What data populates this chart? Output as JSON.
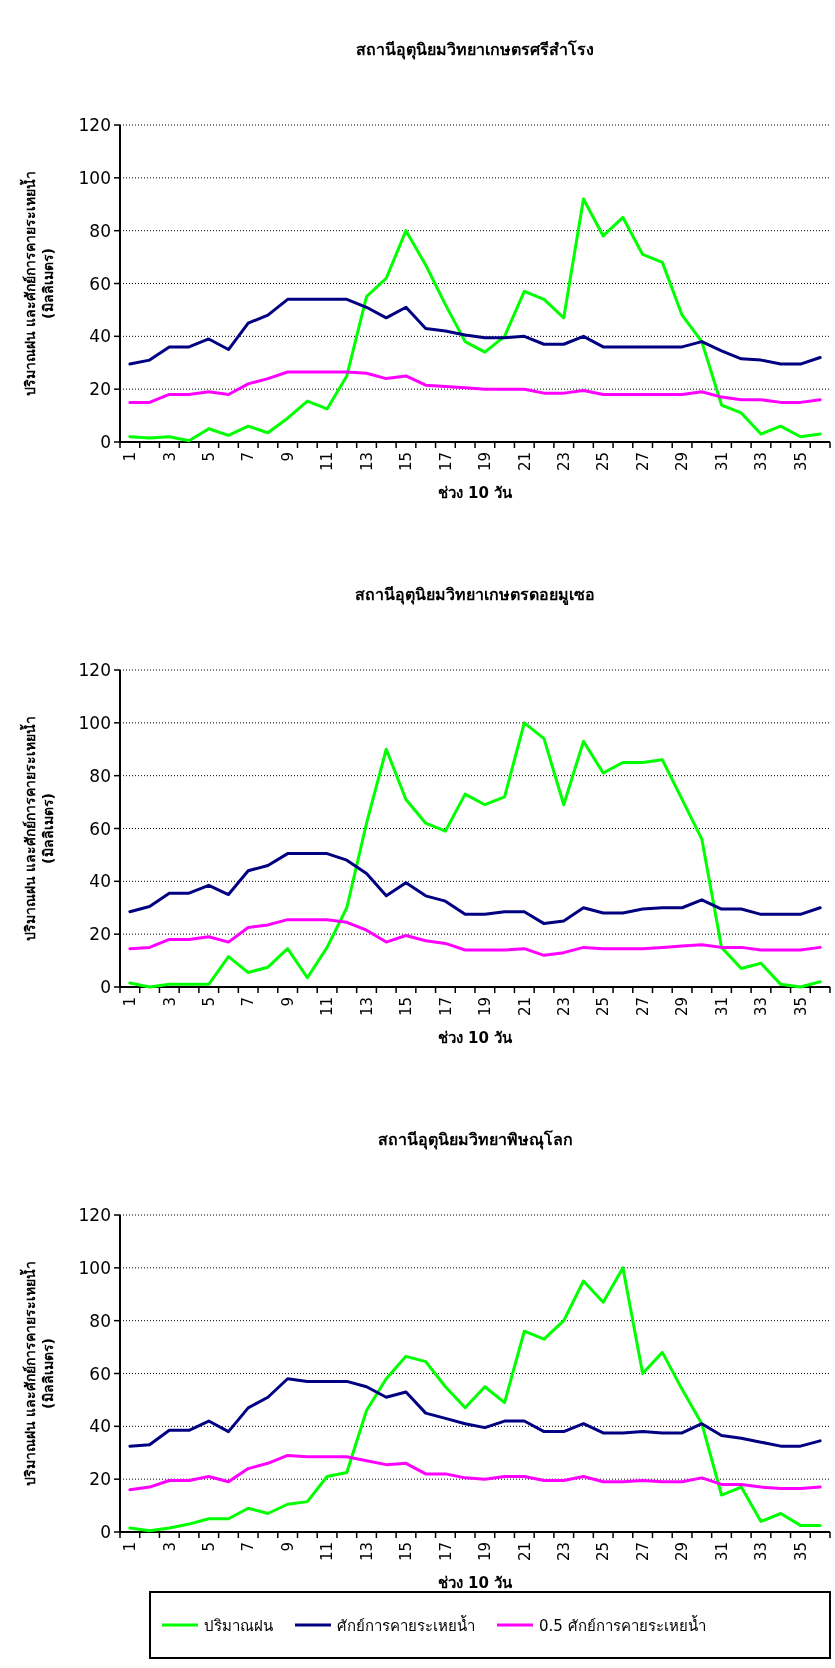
{
  "chart_data": [
    {
      "type": "line",
      "title": "สถานีอุตุนิยมวิทยาเกษตรศรีสำโรง",
      "xlabel": "ช่วง 10 วัน",
      "ylabel": "ปริมาณฝน และศักย์การคายระเหยน้ำ\n(มิลลิเมตร)",
      "categories": [
        "1",
        null,
        "3",
        null,
        "5",
        null,
        "7",
        null,
        "9",
        null,
        "11",
        null,
        "13",
        null,
        "15",
        null,
        "17",
        null,
        "19",
        null,
        "21",
        null,
        "23",
        null,
        "25",
        null,
        "27",
        null,
        "29",
        null,
        "31",
        null,
        "33",
        null,
        "35",
        null
      ],
      "ylim": [
        0,
        120
      ],
      "yticks": [
        0,
        20,
        40,
        60,
        80,
        100,
        120
      ],
      "grid": "y",
      "legend": false,
      "marker": "none",
      "line_style": "solid",
      "series": [
        {
          "color": "#00ff00",
          "values": [
            2,
            1.5,
            2,
            0.5,
            5,
            2.5,
            6,
            3.5,
            9,
            15.5,
            12.5,
            25,
            55,
            62,
            80,
            67,
            52,
            38,
            34,
            40,
            57,
            54,
            47,
            92,
            78,
            85,
            71,
            68,
            48,
            38,
            14,
            11,
            3,
            6,
            2,
            3
          ]
        },
        {
          "color": "#000080",
          "values": [
            29.5,
            31,
            36,
            36,
            39,
            35,
            45,
            48,
            54,
            54,
            54,
            54,
            51,
            47,
            51,
            43,
            42,
            40.5,
            39.5,
            39.5,
            40,
            37,
            37,
            40,
            36,
            36,
            36,
            36,
            36,
            38,
            34.5,
            31.5,
            31,
            29.5,
            29.5,
            32
          ]
        },
        {
          "color": "#ff00ff",
          "values": [
            15,
            15,
            18,
            18,
            19,
            18,
            22,
            24,
            26.5,
            26.5,
            26.5,
            26.5,
            26,
            24,
            25,
            21.5,
            21,
            20.5,
            20,
            20,
            20,
            18.5,
            18.5,
            19.5,
            18,
            18,
            18,
            18,
            18,
            19,
            17,
            16,
            16,
            15,
            15,
            16
          ]
        }
      ]
    },
    {
      "type": "line",
      "title": "สถานีอุตุนิยมวิทยาเกษตรดอยมูเซอ",
      "xlabel": "ช่วง 10 วัน",
      "ylabel": "ปริมาณฝน และศักย์การคายระเหยน้ำ\n(มิลลิเมตร)",
      "categories": [
        "1",
        null,
        "3",
        null,
        "5",
        null,
        "7",
        null,
        "9",
        null,
        "11",
        null,
        "13",
        null,
        "15",
        null,
        "17",
        null,
        "19",
        null,
        "21",
        null,
        "23",
        null,
        "25",
        null,
        "27",
        null,
        "29",
        null,
        "31",
        null,
        "33",
        null,
        "35",
        null
      ],
      "ylim": [
        0,
        120
      ],
      "yticks": [
        0,
        20,
        40,
        60,
        80,
        100,
        120
      ],
      "grid": "y",
      "legend": false,
      "marker": "none",
      "line_style": "solid",
      "series": [
        {
          "color": "#00ff00",
          "values": [
            1.5,
            0,
            1,
            1,
            1,
            11.5,
            5.5,
            7.5,
            14.5,
            3.5,
            15,
            30,
            62,
            90,
            71,
            62,
            59,
            73,
            69,
            72,
            100,
            94,
            69,
            93,
            81,
            85,
            85,
            86,
            71,
            56,
            15,
            7,
            9,
            1,
            0,
            2
          ]
        },
        {
          "color": "#000080",
          "values": [
            28.5,
            30.5,
            35.5,
            35.5,
            38.5,
            35,
            44,
            46,
            50.5,
            50.5,
            50.5,
            48,
            43,
            34.5,
            39.5,
            34.5,
            32.5,
            27.5,
            27.5,
            28.5,
            28.5,
            24,
            25,
            30,
            28,
            28,
            29.5,
            30,
            30,
            33,
            29.5,
            29.5,
            27.5,
            27.5,
            27.5,
            30
          ]
        },
        {
          "color": "#ff00ff",
          "values": [
            14.5,
            15,
            18,
            18,
            19,
            17,
            22.5,
            23.5,
            25.5,
            25.5,
            25.5,
            24.5,
            21.5,
            17,
            19.5,
            17.5,
            16.5,
            14,
            14,
            14,
            14.5,
            12,
            13,
            15,
            14.5,
            14.5,
            14.5,
            15,
            15.5,
            16,
            15,
            15,
            14,
            14,
            14,
            15
          ]
        }
      ]
    },
    {
      "type": "line",
      "title": "สถานีอุตุนิยมวิทยาพิษณุโลก",
      "xlabel": "ช่วง 10 วัน",
      "ylabel": "ปริมาณฝน และศักย์การคายระเหยน้ำ\n(มิลลิเมตร)",
      "categories": [
        "1",
        null,
        "3",
        null,
        "5",
        null,
        "7",
        null,
        "9",
        null,
        "11",
        null,
        "13",
        null,
        "15",
        null,
        "17",
        null,
        "19",
        null,
        "21",
        null,
        "23",
        null,
        "25",
        null,
        "27",
        null,
        "29",
        null,
        "31",
        null,
        "33",
        null,
        "35",
        null
      ],
      "ylim": [
        0,
        120
      ],
      "yticks": [
        0,
        20,
        40,
        60,
        80,
        100,
        120
      ],
      "grid": "y",
      "legend": "bottom",
      "marker": "none",
      "line_style": "solid",
      "series": [
        {
          "name": "ปริมาณฝน",
          "color": "#00ff00",
          "values": [
            1.5,
            0.5,
            1.5,
            3,
            5,
            5,
            9,
            7,
            10.5,
            11.5,
            21,
            22.5,
            46,
            58,
            66.5,
            64.5,
            55,
            47,
            55,
            49,
            76,
            73,
            80,
            95,
            87,
            100,
            60,
            68,
            54,
            41,
            14,
            17,
            4,
            7,
            2.5,
            2.5
          ]
        },
        {
          "name": "ศักย์การคายระเหยน้ำ",
          "color": "#000080",
          "values": [
            32.5,
            33,
            38.5,
            38.5,
            42,
            38,
            47,
            51,
            58,
            57,
            57,
            57,
            55,
            51,
            53,
            45,
            43,
            41,
            39.5,
            42,
            42,
            38,
            38,
            41,
            37.5,
            37.5,
            38,
            37.5,
            37.5,
            41,
            36.5,
            35.5,
            34,
            32.5,
            32.5,
            34.5
          ]
        },
        {
          "name": "0.5 ศักย์การคายระเหยน้ำ",
          "color": "#ff00ff",
          "values": [
            16,
            17,
            19.5,
            19.5,
            21,
            19,
            24,
            26,
            29,
            28.5,
            28.5,
            28.5,
            27,
            25.5,
            26,
            22,
            22,
            20.5,
            20,
            21,
            21,
            19.5,
            19.5,
            21,
            19,
            19,
            19.5,
            19,
            19,
            20.5,
            18,
            18,
            17,
            16.5,
            16.5,
            17
          ]
        }
      ]
    }
  ]
}
